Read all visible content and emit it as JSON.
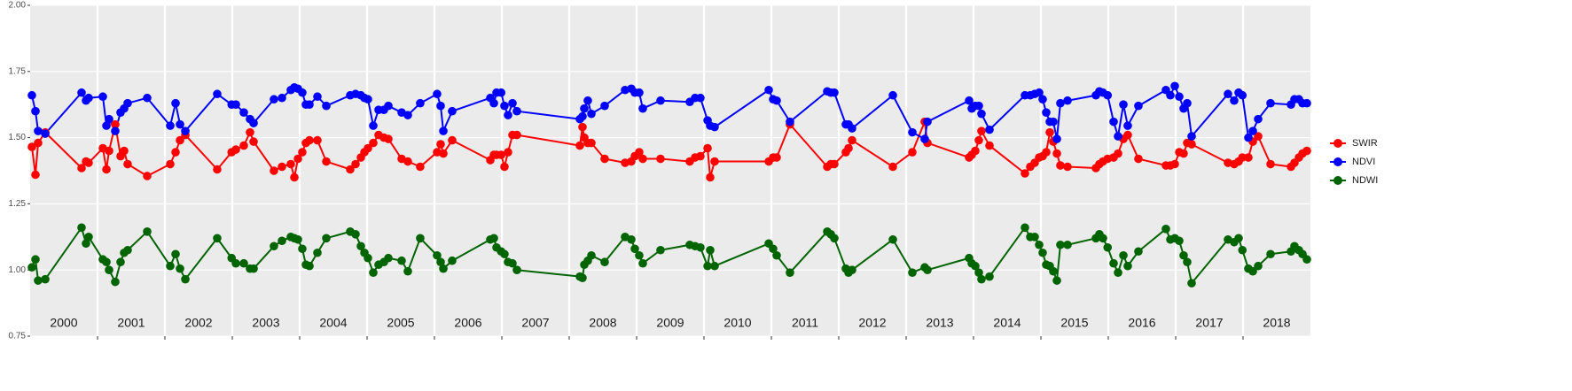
{
  "chart_data": {
    "type": "line",
    "x": [
      2000.026,
      2000.079,
      2000.118,
      2000.224,
      2000.763,
      2000.829,
      2000.868,
      2001.079,
      2001.132,
      2001.171,
      2001.263,
      2001.342,
      2001.395,
      2001.447,
      2001.737,
      2002.079,
      2002.158,
      2002.224,
      2002.303,
      2002.776,
      2002.99,
      2003.053,
      2003.171,
      2003.263,
      2003.316,
      2003.618,
      2003.737,
      2003.868,
      2003.921,
      2003.974,
      2004.039,
      2004.092,
      2004.145,
      2004.263,
      2004.395,
      2004.75,
      2004.829,
      2004.908,
      2004.961,
      2005.013,
      2005.092,
      2005.171,
      2005.25,
      2005.316,
      2005.513,
      2005.605,
      2005.789,
      2006.039,
      2006.092,
      2006.132,
      2006.263,
      2006.829,
      2006.882,
      2006.921,
      2006.99,
      2007.039,
      2007.092,
      2007.158,
      2007.224,
      2008.158,
      2008.197,
      2008.224,
      2008.276,
      2008.329,
      2008.526,
      2008.829,
      2008.921,
      2008.974,
      2009.039,
      2009.092,
      2009.355,
      2009.789,
      2009.868,
      2009.947,
      2010.053,
      2010.092,
      2010.158,
      2010.961,
      2011.026,
      2011.079,
      2011.276,
      2011.829,
      2011.882,
      2011.934,
      2012.105,
      2012.145,
      2012.197,
      2012.803,
      2013.092,
      2013.276,
      2013.316,
      2013.934,
      2013.974,
      2014.026,
      2014.079,
      2014.118,
      2014.237,
      2014.763,
      2014.842,
      2014.908,
      2014.974,
      2015.026,
      2015.079,
      2015.132,
      2015.184,
      2015.237,
      2015.289,
      2015.395,
      2015.816,
      2015.868,
      2015.921,
      2015.99,
      2016.079,
      2016.145,
      2016.224,
      2016.289,
      2016.447,
      2016.855,
      2016.921,
      2016.987,
      2017.053,
      2017.118,
      2017.171,
      2017.237,
      2017.776,
      2017.868,
      2017.934,
      2017.99,
      2018.079,
      2018.145,
      2018.224,
      2018.408,
      2018.711,
      2018.763,
      2018.829,
      2018.882,
      2018.947
    ],
    "series": [
      {
        "name": "SWIR",
        "color": "#ff0000",
        "values": [
          1.465,
          1.36,
          1.48,
          1.52,
          1.385,
          1.41,
          1.405,
          1.46,
          1.38,
          1.45,
          1.55,
          1.43,
          1.45,
          1.4,
          1.355,
          1.4,
          1.445,
          1.49,
          1.51,
          1.38,
          1.445,
          1.455,
          1.47,
          1.52,
          1.485,
          1.375,
          1.39,
          1.4,
          1.35,
          1.42,
          1.445,
          1.48,
          1.49,
          1.49,
          1.41,
          1.38,
          1.4,
          1.425,
          1.445,
          1.46,
          1.48,
          1.51,
          1.5,
          1.495,
          1.42,
          1.41,
          1.39,
          1.445,
          1.475,
          1.44,
          1.49,
          1.415,
          1.435,
          1.435,
          1.435,
          1.39,
          1.445,
          1.51,
          1.51,
          1.47,
          1.54,
          1.5,
          1.48,
          1.48,
          1.42,
          1.405,
          1.41,
          1.43,
          1.445,
          1.42,
          1.42,
          1.41,
          1.425,
          1.43,
          1.46,
          1.35,
          1.41,
          1.41,
          1.425,
          1.425,
          1.55,
          1.39,
          1.4,
          1.4,
          1.445,
          1.46,
          1.49,
          1.39,
          1.445,
          1.56,
          1.48,
          1.425,
          1.435,
          1.45,
          1.49,
          1.525,
          1.47,
          1.365,
          1.39,
          1.405,
          1.425,
          1.43,
          1.445,
          1.52,
          1.485,
          1.44,
          1.395,
          1.39,
          1.385,
          1.4,
          1.41,
          1.42,
          1.425,
          1.44,
          1.495,
          1.51,
          1.42,
          1.395,
          1.395,
          1.4,
          1.445,
          1.44,
          1.48,
          1.475,
          1.405,
          1.4,
          1.41,
          1.425,
          1.425,
          1.485,
          1.505,
          1.4,
          1.39,
          1.405,
          1.425,
          1.44,
          1.45
        ]
      },
      {
        "name": "NDVI",
        "color": "#0000ff",
        "values": [
          1.66,
          1.6,
          1.525,
          1.515,
          1.67,
          1.64,
          1.65,
          1.655,
          1.545,
          1.57,
          1.525,
          1.595,
          1.61,
          1.63,
          1.65,
          1.545,
          1.63,
          1.55,
          1.525,
          1.665,
          1.625,
          1.625,
          1.595,
          1.57,
          1.555,
          1.645,
          1.65,
          1.68,
          1.69,
          1.685,
          1.67,
          1.625,
          1.625,
          1.655,
          1.62,
          1.66,
          1.665,
          1.66,
          1.65,
          1.645,
          1.545,
          1.605,
          1.605,
          1.62,
          1.595,
          1.585,
          1.63,
          1.665,
          1.62,
          1.525,
          1.6,
          1.65,
          1.63,
          1.67,
          1.67,
          1.62,
          1.585,
          1.63,
          1.6,
          1.57,
          1.58,
          1.61,
          1.64,
          1.59,
          1.62,
          1.68,
          1.685,
          1.67,
          1.67,
          1.61,
          1.64,
          1.635,
          1.65,
          1.65,
          1.565,
          1.545,
          1.54,
          1.68,
          1.645,
          1.64,
          1.56,
          1.675,
          1.67,
          1.67,
          1.55,
          1.55,
          1.535,
          1.66,
          1.52,
          1.495,
          1.56,
          1.64,
          1.61,
          1.62,
          1.62,
          1.59,
          1.53,
          1.66,
          1.66,
          1.665,
          1.67,
          1.645,
          1.595,
          1.56,
          1.56,
          1.495,
          1.63,
          1.64,
          1.66,
          1.675,
          1.67,
          1.66,
          1.56,
          1.505,
          1.625,
          1.545,
          1.62,
          1.68,
          1.66,
          1.695,
          1.655,
          1.61,
          1.63,
          1.505,
          1.665,
          1.64,
          1.67,
          1.66,
          1.5,
          1.525,
          1.57,
          1.63,
          1.625,
          1.645,
          1.645,
          1.63,
          1.63
        ]
      },
      {
        "name": "NDWI",
        "color": "#006400",
        "values": [
          1.01,
          1.04,
          0.96,
          0.965,
          1.16,
          1.1,
          1.125,
          1.04,
          1.03,
          1.0,
          0.955,
          1.03,
          1.065,
          1.075,
          1.145,
          1.015,
          1.06,
          1.005,
          0.965,
          1.12,
          1.045,
          1.025,
          1.025,
          1.005,
          1.005,
          1.09,
          1.11,
          1.125,
          1.12,
          1.115,
          1.08,
          1.02,
          1.015,
          1.065,
          1.12,
          1.145,
          1.135,
          1.09,
          1.065,
          1.045,
          0.99,
          1.02,
          1.03,
          1.045,
          1.035,
          0.995,
          1.12,
          1.055,
          1.03,
          1.005,
          1.035,
          1.115,
          1.12,
          1.085,
          1.07,
          1.06,
          1.03,
          1.025,
          1.0,
          0.975,
          0.97,
          1.02,
          1.035,
          1.055,
          1.03,
          1.125,
          1.115,
          1.08,
          1.055,
          1.025,
          1.075,
          1.095,
          1.09,
          1.085,
          1.015,
          1.075,
          1.015,
          1.1,
          1.08,
          1.055,
          0.99,
          1.145,
          1.135,
          1.12,
          1.005,
          0.99,
          1.0,
          1.115,
          0.99,
          1.01,
          1.0,
          1.045,
          1.025,
          1.015,
          0.99,
          0.965,
          0.975,
          1.16,
          1.125,
          1.125,
          1.095,
          1.065,
          1.02,
          1.015,
          0.995,
          0.96,
          1.095,
          1.095,
          1.12,
          1.135,
          1.12,
          1.085,
          1.025,
          0.99,
          1.055,
          1.015,
          1.07,
          1.155,
          1.115,
          1.12,
          1.11,
          1.055,
          1.03,
          0.95,
          1.115,
          1.105,
          1.12,
          1.075,
          1.005,
          0.995,
          1.015,
          1.06,
          1.07,
          1.09,
          1.075,
          1.06,
          1.04
        ]
      }
    ],
    "xlim": [
      2000,
      2019
    ],
    "xticks": [
      {
        "value": 2000.5,
        "label": "2000"
      },
      {
        "value": 2001.5,
        "label": "2001"
      },
      {
        "value": 2002.5,
        "label": "2002"
      },
      {
        "value": 2003.5,
        "label": "2003"
      },
      {
        "value": 2004.5,
        "label": "2004"
      },
      {
        "value": 2005.5,
        "label": "2005"
      },
      {
        "value": 2006.5,
        "label": "2006"
      },
      {
        "value": 2007.5,
        "label": "2007"
      },
      {
        "value": 2008.5,
        "label": "2008"
      },
      {
        "value": 2009.5,
        "label": "2009"
      },
      {
        "value": 2010.5,
        "label": "2010"
      },
      {
        "value": 2011.5,
        "label": "2011"
      },
      {
        "value": 2012.5,
        "label": "2012"
      },
      {
        "value": 2013.5,
        "label": "2013"
      },
      {
        "value": 2014.5,
        "label": "2014"
      },
      {
        "value": 2015.5,
        "label": "2015"
      },
      {
        "value": 2016.5,
        "label": "2016"
      },
      {
        "value": 2017.5,
        "label": "2017"
      },
      {
        "value": 2018.5,
        "label": "2018"
      }
    ],
    "ylim": [
      0.75,
      2
    ],
    "yticks": [
      0.75,
      {
        "value": 1,
        "label": "1.00"
      },
      1.25,
      {
        "value": 1.5,
        "label": "1.50"
      },
      1.75,
      {
        "value": 2,
        "label": "2.00"
      }
    ],
    "grid": true,
    "legend": "right"
  }
}
